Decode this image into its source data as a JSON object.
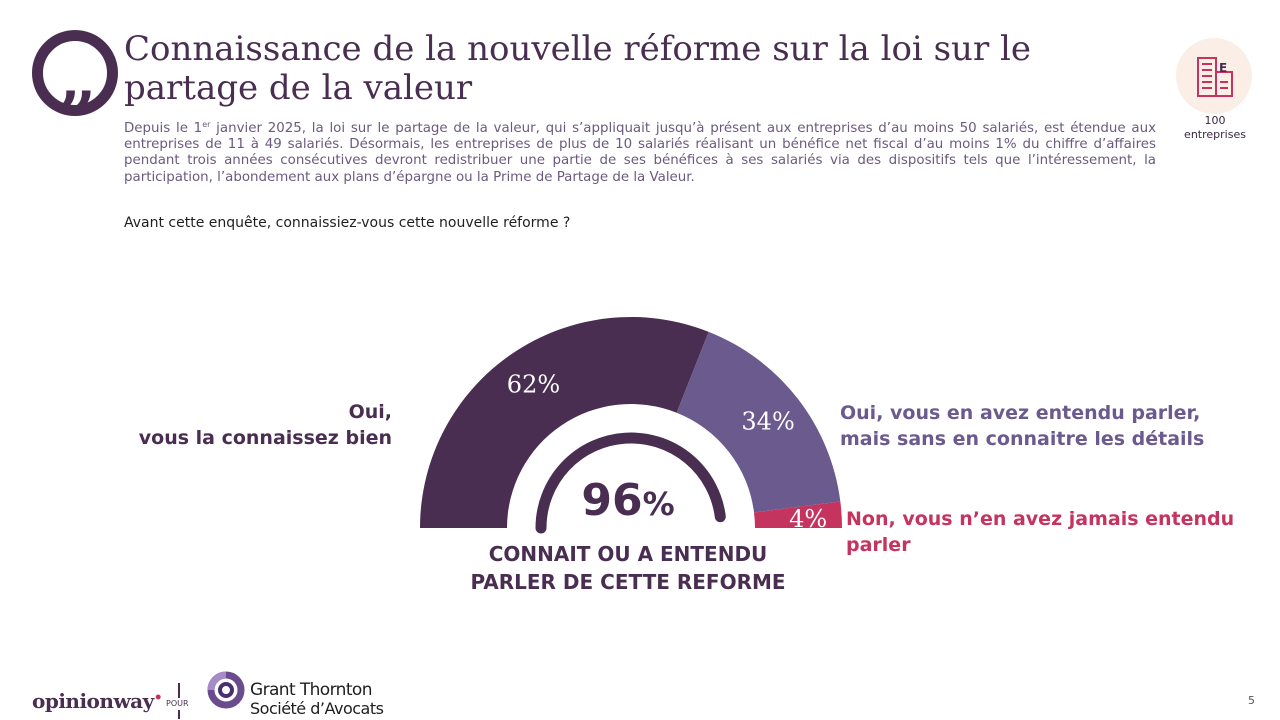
{
  "title": "Connaissance de la nouvelle réforme sur la loi sur le partage de la valeur",
  "intro": {
    "before_sup": "Depuis le 1",
    "sup": "er",
    "after_sup": " janvier 2025, la loi sur le partage de la valeur, qui s’appliquait jusqu’à présent aux entreprises d’au moins 50 salariés, est étendue aux entreprises de 11 à 49 salariés. Désormais, les entreprises de plus de 10 salariés réalisant un bénéfice net fiscal d’au moins 1% du chiffre d’affaires pendant trois années consécutives devront redistribuer une partie de ses bénéfices à ses salariés via des dispositifs tels que l’intéressement, la participation, l’abondement aux plans d’épargne ou la Prime de Partage de la Valeur."
  },
  "question": "Avant cette enquête, connaissiez-vous cette nouvelle réforme ?",
  "sample": {
    "count": "100",
    "unit": "entreprises",
    "icon": "building-icon"
  },
  "chart_data": {
    "type": "pie",
    "variant": "half-donut",
    "slices": [
      {
        "label": "Oui,\nvous la connaissez bien",
        "value": 62,
        "display": "62%",
        "color": "#4a2e52"
      },
      {
        "label": "Oui, vous en avez entendu parler,\nmais sans en connaitre les détails",
        "value": 34,
        "display": "34%",
        "color": "#6b5a8e"
      },
      {
        "label": "Non, vous n’en avez jamais entendu\nparler",
        "value": 4,
        "display": "4%",
        "color": "#c5335f"
      }
    ],
    "total": {
      "value": 96,
      "number": "96",
      "unit": "%",
      "caption": "CONNAIT OU A ENTENDU PARLER DE CETTE REFORME"
    }
  },
  "footer": {
    "brand": "opinionway",
    "pour": "POUR",
    "partner_line1": "Grant Thornton",
    "partner_line2": "Société d’Avocats",
    "page": "5"
  },
  "colors": {
    "primary": "#4a2e52",
    "secondary": "#6b5a8e",
    "accent": "#c5335f",
    "track": "#ffffff"
  }
}
